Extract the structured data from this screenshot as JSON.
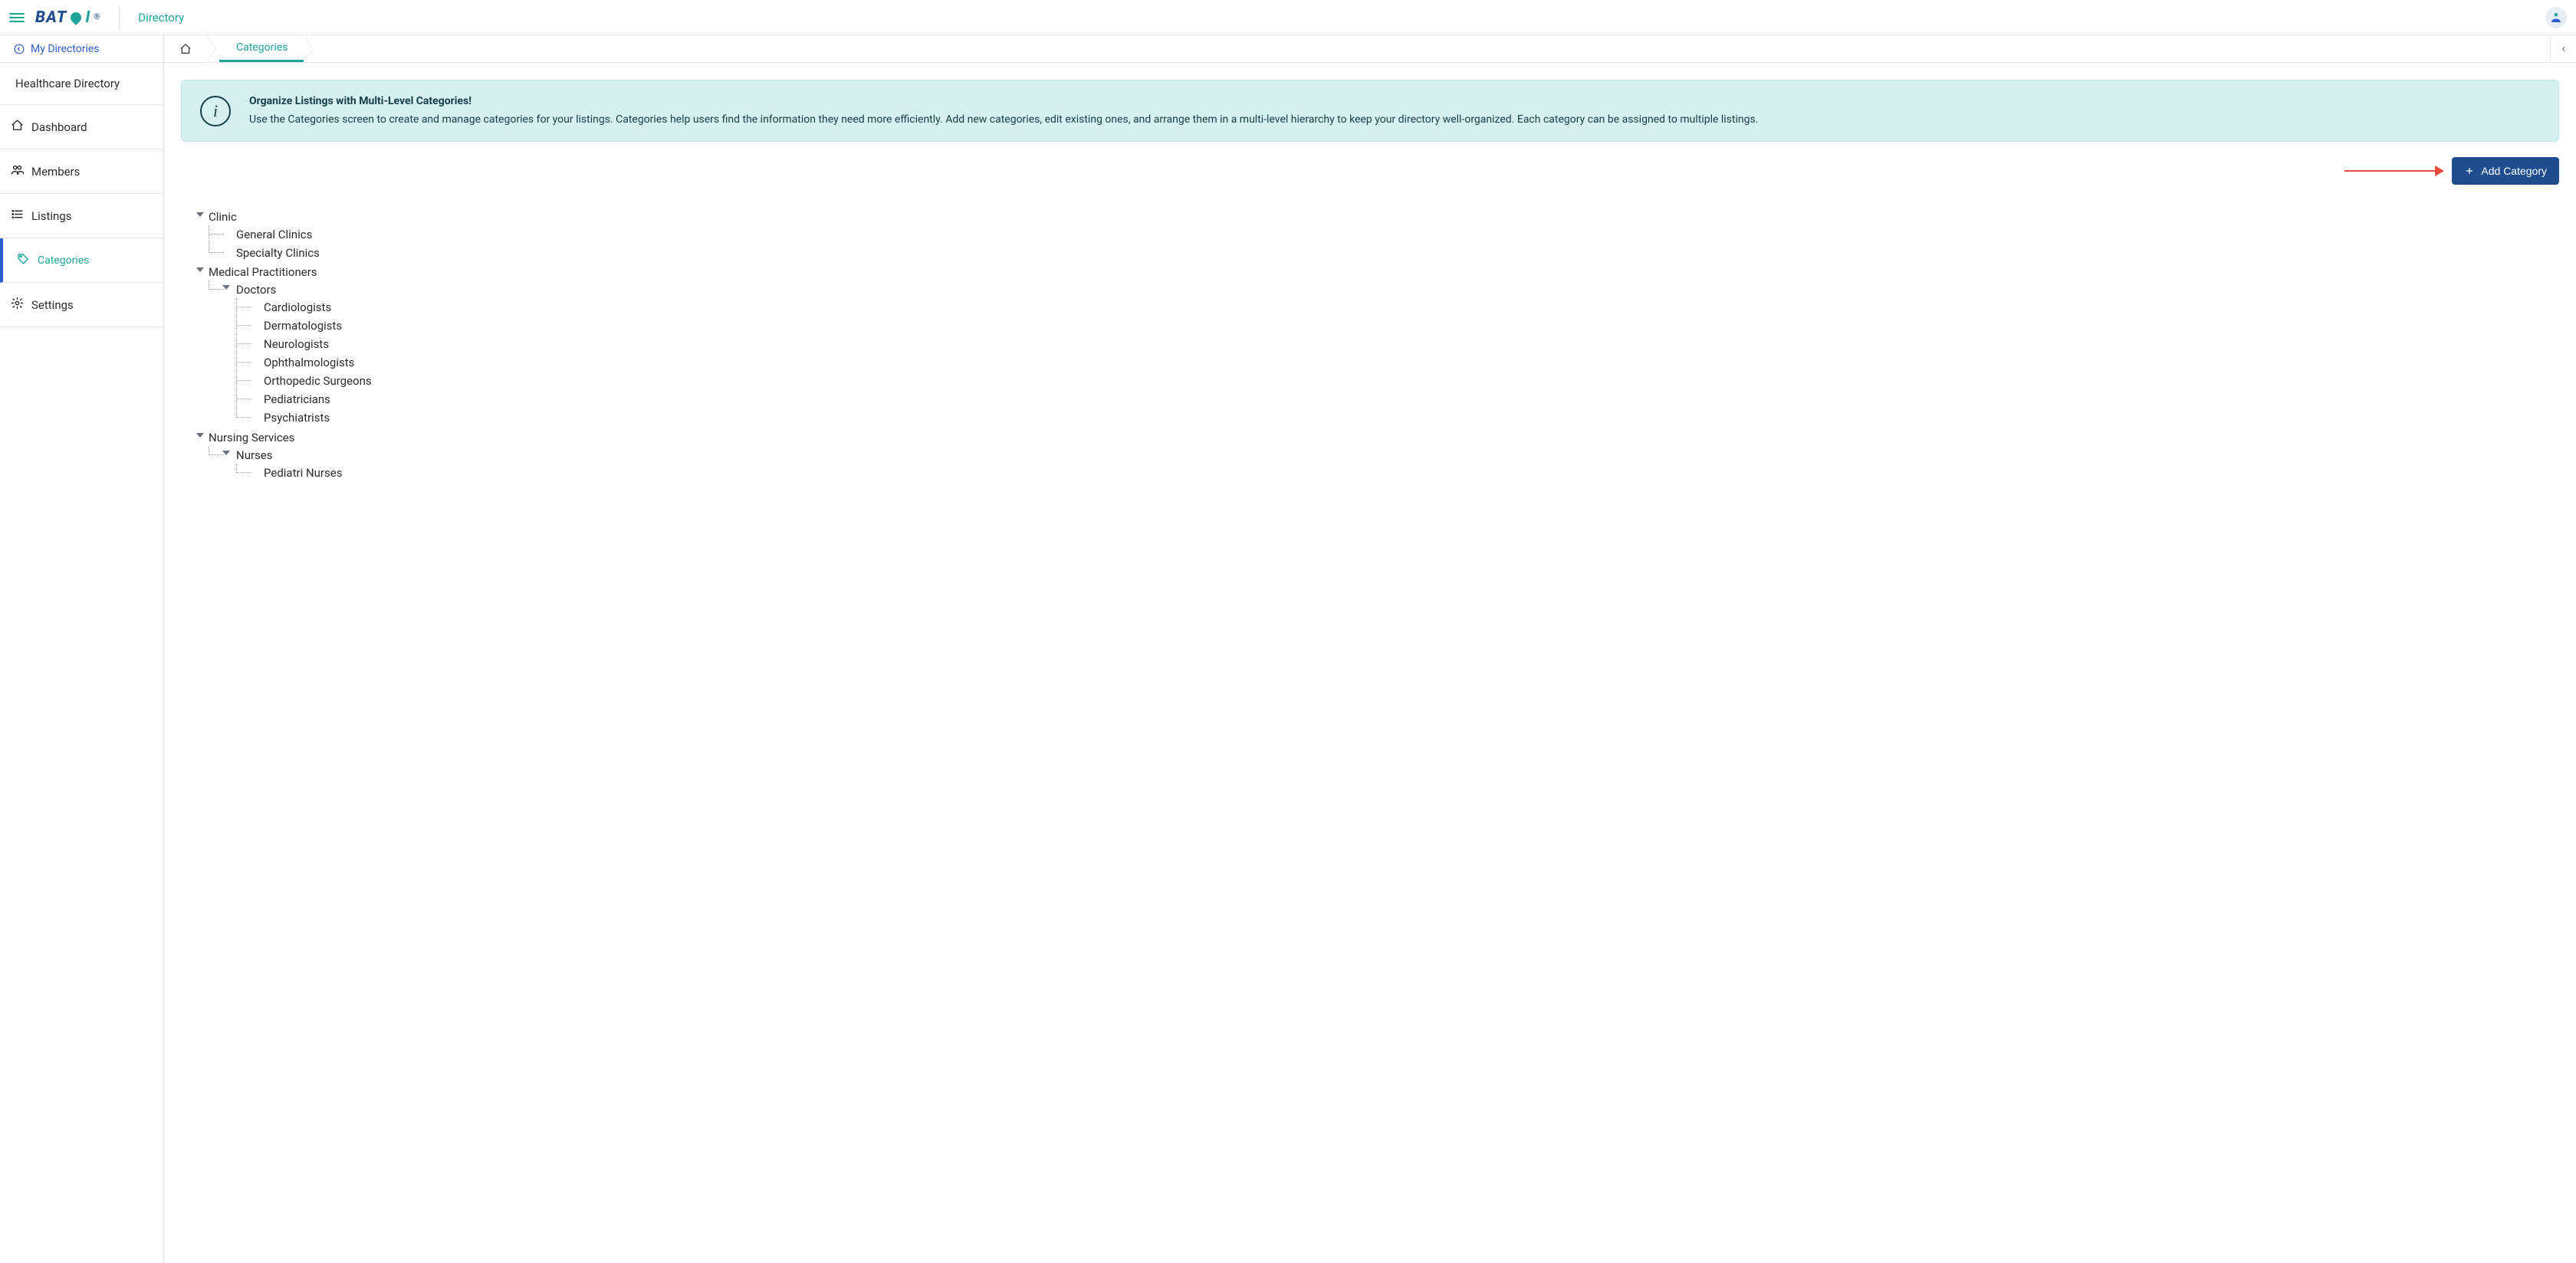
{
  "colors": {
    "teal": "#1fa698",
    "blue": "#2d5fd0",
    "navy": "#1f4d8f",
    "border": "#e5e7eb",
    "banner_bg": "#d6f0f2",
    "banner_border": "#bfe6e9",
    "banner_text": "#15404a",
    "arrow": "#e94b3c",
    "text": "#2c2c2c"
  },
  "header": {
    "brand_part1": "BAT",
    "brand_part2": "I",
    "registered": "®",
    "product": "Directory"
  },
  "subheader": {
    "back_label": "My Directories",
    "breadcrumbs": [
      "Categories"
    ]
  },
  "sidebar": {
    "directory_title": "Healthcare Directory",
    "items": [
      {
        "label": "Dashboard",
        "icon": "home",
        "active": false,
        "sub": false
      },
      {
        "label": "Members",
        "icon": "members",
        "active": false,
        "sub": false
      },
      {
        "label": "Listings",
        "icon": "list",
        "active": false,
        "sub": false
      },
      {
        "label": "Categories",
        "icon": "tag",
        "active": true,
        "sub": true
      },
      {
        "label": "Settings",
        "icon": "gear",
        "active": false,
        "sub": false
      }
    ]
  },
  "banner": {
    "title": "Organize Listings with Multi-Level Categories!",
    "body": "Use the Categories screen to create and manage categories for your listings. Categories help users find the information they need more efficiently. Add new categories, edit existing ones, and arrange them in a multi-level hierarchy to keep your directory well-organized. Each category can be assigned to multiple listings."
  },
  "actions": {
    "add_category_label": "Add Category"
  },
  "tree": [
    {
      "label": "Clinic",
      "children": [
        {
          "label": "General Clinics"
        },
        {
          "label": "Specialty Clinics"
        }
      ]
    },
    {
      "label": "Medical Practitioners",
      "children": [
        {
          "label": "Doctors",
          "children": [
            {
              "label": "Cardiologists"
            },
            {
              "label": "Dermatologists"
            },
            {
              "label": "Neurologists"
            },
            {
              "label": "Ophthalmologists"
            },
            {
              "label": "Orthopedic Surgeons"
            },
            {
              "label": "Pediatricians"
            },
            {
              "label": "Psychiatrists"
            }
          ]
        }
      ]
    },
    {
      "label": "Nursing Services",
      "children": [
        {
          "label": "Nurses",
          "children": [
            {
              "label": "Pediatri Nurses"
            }
          ]
        }
      ]
    }
  ]
}
